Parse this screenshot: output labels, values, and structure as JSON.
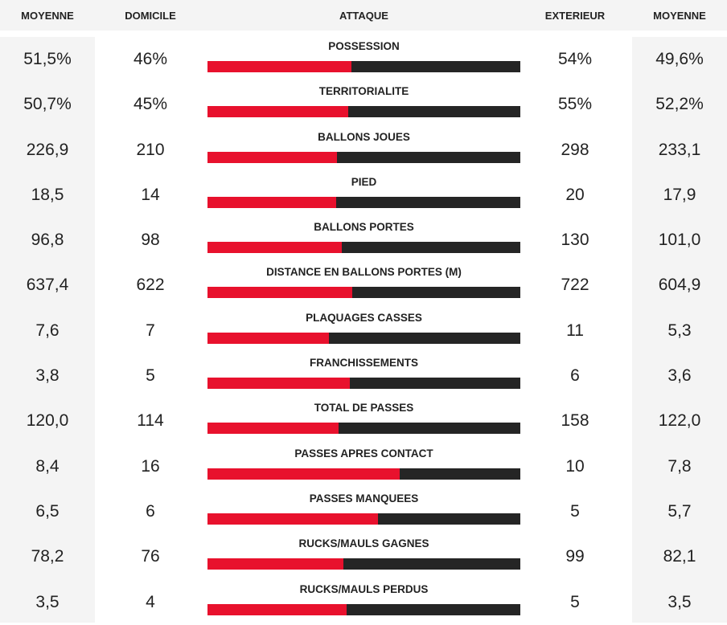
{
  "header": {
    "moyenne_left": "MOYENNE",
    "domicile": "DOMICILE",
    "attaque": "ATTAQUE",
    "exterieur": "EXTERIEUR",
    "moyenne_right": "MOYENNE"
  },
  "colors": {
    "home_bar": "#e8112d",
    "away_bar": "#252525",
    "shade": "#f4f4f4"
  },
  "stats": [
    {
      "label": "POSSESSION",
      "avg_home": "51,5%",
      "home": "46%",
      "away": "54%",
      "avg_away": "49,6%",
      "home_share": 0.46
    },
    {
      "label": "TERRITORIALITE",
      "avg_home": "50,7%",
      "home": "45%",
      "away": "55%",
      "avg_away": "52,2%",
      "home_share": 0.45
    },
    {
      "label": "BALLONS JOUES",
      "avg_home": "226,9",
      "home": "210",
      "away": "298",
      "avg_away": "233,1",
      "home_share": 0.4135
    },
    {
      "label": "PIED",
      "avg_home": "18,5",
      "home": "14",
      "away": "20",
      "avg_away": "17,9",
      "home_share": 0.4118
    },
    {
      "label": "BALLONS PORTES",
      "avg_home": "96,8",
      "home": "98",
      "away": "130",
      "avg_away": "101,0",
      "home_share": 0.4298
    },
    {
      "label": "DISTANCE EN BALLONS PORTES (M)",
      "avg_home": "637,4",
      "home": "622",
      "away": "722",
      "avg_away": "604,9",
      "home_share": 0.4628
    },
    {
      "label": "PLAQUAGES CASSES",
      "avg_home": "7,6",
      "home": "7",
      "away": "11",
      "avg_away": "5,3",
      "home_share": 0.3889
    },
    {
      "label": "FRANCHISSEMENTS",
      "avg_home": "3,8",
      "home": "5",
      "away": "6",
      "avg_away": "3,6",
      "home_share": 0.4545
    },
    {
      "label": "TOTAL DE PASSES",
      "avg_home": "120,0",
      "home": "114",
      "away": "158",
      "avg_away": "122,0",
      "home_share": 0.4191
    },
    {
      "label": "PASSES APRES CONTACT",
      "avg_home": "8,4",
      "home": "16",
      "away": "10",
      "avg_away": "7,8",
      "home_share": 0.6154
    },
    {
      "label": "PASSES MANQUEES",
      "avg_home": "6,5",
      "home": "6",
      "away": "5",
      "avg_away": "5,7",
      "home_share": 0.5455
    },
    {
      "label": "RUCKS/MAULS GAGNES",
      "avg_home": "78,2",
      "home": "76",
      "away": "99",
      "avg_away": "82,1",
      "home_share": 0.4343
    },
    {
      "label": "RUCKS/MAULS PERDUS",
      "avg_home": "3,5",
      "home": "4",
      "away": "5",
      "avg_away": "3,5",
      "home_share": 0.4444
    }
  ]
}
